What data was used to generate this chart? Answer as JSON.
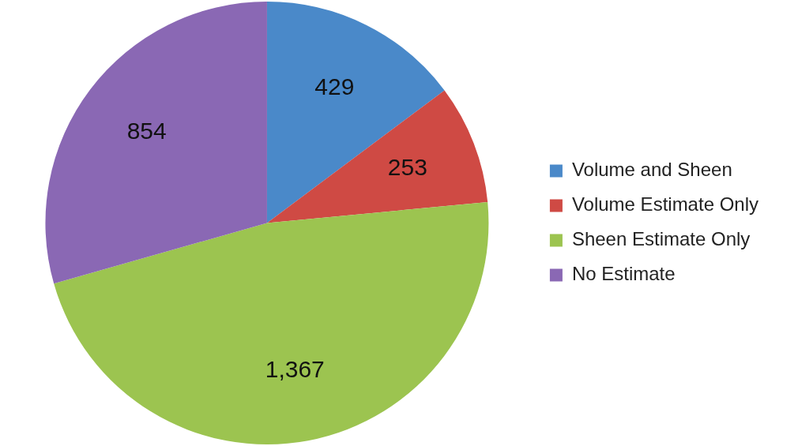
{
  "chart_data": {
    "type": "pie",
    "categories": [
      "Volume and Sheen",
      "Volume Estimate Only",
      "Sheen Estimate Only",
      "No Estimate"
    ],
    "values": [
      429,
      253,
      1367,
      854
    ],
    "colors": [
      "#4a89c9",
      "#cf4a44",
      "#9cc450",
      "#8a68b4"
    ],
    "value_labels": [
      "429",
      "253",
      "1,367",
      "854"
    ],
    "legend": "right"
  }
}
